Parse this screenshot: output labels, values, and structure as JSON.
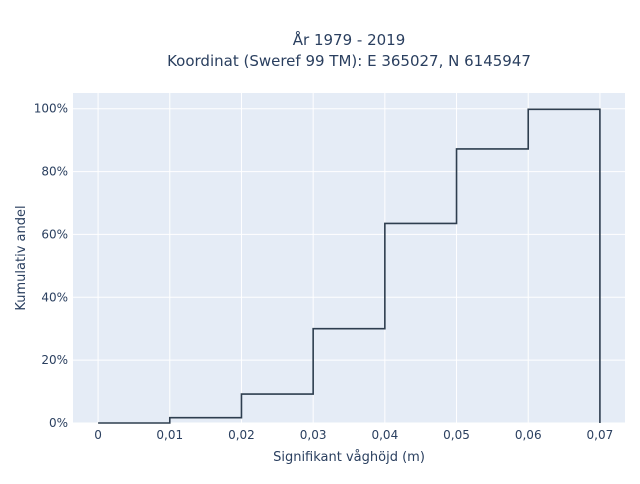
{
  "chart_data": {
    "type": "line",
    "line_shape": "step",
    "title_lines": [
      "År 1979 - 2019",
      "Koordinat (Sweref 99 TM): E 365027, N 6145947"
    ],
    "xlabel": "Signifikant våghöjd (m)",
    "ylabel": "Kumulativ andel",
    "xlim": [
      -0.0035,
      0.0735
    ],
    "ylim": [
      0,
      1.05
    ],
    "x_ticks": [
      0,
      0.01,
      0.02,
      0.03,
      0.04,
      0.05,
      0.06,
      0.07
    ],
    "x_tick_labels": [
      "0",
      "0,01",
      "0,02",
      "0,03",
      "0,04",
      "0,05",
      "0,06",
      "0,07"
    ],
    "y_ticks": [
      0,
      0.2,
      0.4,
      0.6,
      0.8,
      1.0
    ],
    "y_tick_labels": [
      "0%",
      "20%",
      "40%",
      "60%",
      "80%",
      "100%"
    ],
    "series": [
      {
        "x": [
          0,
          0.01,
          0.02,
          0.03,
          0.04,
          0.05,
          0.06,
          0.07,
          0.07
        ],
        "values": [
          0,
          0.017,
          0.092,
          0.3,
          0.635,
          0.872,
          0.998,
          0.998,
          0
        ],
        "color": "#2e3e4f"
      }
    ],
    "colors": {
      "plot_bg": "#e5ecf6",
      "grid": "#ffffff",
      "text": "#2a3f5f"
    },
    "grid": true,
    "legend": "none"
  }
}
